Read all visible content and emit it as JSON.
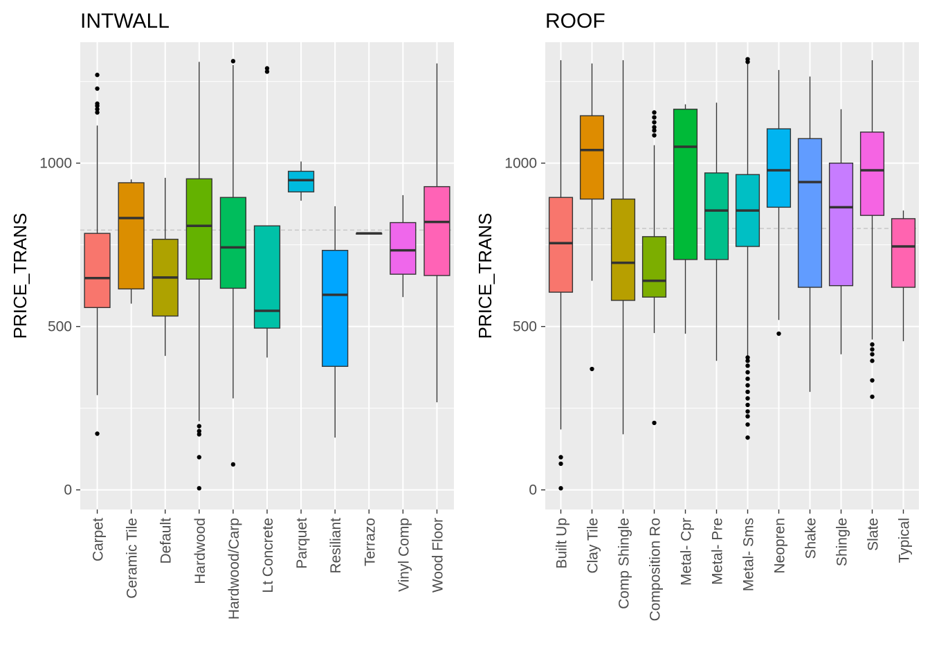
{
  "chart_data": [
    {
      "type": "boxplot",
      "title": "INTWALL",
      "xlabel": "",
      "ylabel": "PRICE_TRANS",
      "ylim": [
        -60,
        1370
      ],
      "yticks": [
        0,
        500,
        1000
      ],
      "reference_line": 795,
      "grid": true,
      "legend": "none",
      "categories": [
        "Carpet",
        "Ceramic Tile",
        "Default",
        "Hardwood",
        "Hardwood/Carp",
        "Lt Concrete",
        "Parquet",
        "Resiliant",
        "Terrazo",
        "Vinyl Comp",
        "Wood Floor"
      ],
      "colors": [
        "#F8766D",
        "#DB8E00",
        "#AEA200",
        "#64B200",
        "#00BD5C",
        "#00C1A7",
        "#00BADE",
        "#00A6FF",
        "#B385FF",
        "#EF67EB",
        "#FF63B6"
      ],
      "boxes": [
        {
          "min": 290,
          "q1": 558,
          "median": 648,
          "q3": 785,
          "max": 1115,
          "outliers": [
            172,
            1155,
            1165,
            1175,
            1182,
            1228,
            1270
          ]
        },
        {
          "min": 570,
          "q1": 615,
          "median": 832,
          "q3": 940,
          "max": 950,
          "outliers": []
        },
        {
          "min": 410,
          "q1": 532,
          "median": 650,
          "q3": 767,
          "max": 955,
          "outliers": []
        },
        {
          "min": 210,
          "q1": 645,
          "median": 808,
          "q3": 952,
          "max": 1310,
          "outliers": [
            5,
            100,
            170,
            180,
            195
          ]
        },
        {
          "min": 280,
          "q1": 617,
          "median": 742,
          "q3": 895,
          "max": 1300,
          "outliers": [
            78,
            1312
          ]
        },
        {
          "min": 405,
          "q1": 495,
          "median": 548,
          "q3": 808,
          "max": 808,
          "outliers": [
            1280,
            1290
          ]
        },
        {
          "min": 885,
          "q1": 912,
          "median": 948,
          "q3": 975,
          "max": 1005,
          "outliers": []
        },
        {
          "min": 160,
          "q1": 378,
          "median": 597,
          "q3": 733,
          "max": 868,
          "outliers": []
        },
        {
          "min": 785,
          "q1": 785,
          "median": 785,
          "q3": 785,
          "max": 785,
          "outliers": []
        },
        {
          "min": 590,
          "q1": 660,
          "median": 733,
          "q3": 818,
          "max": 902,
          "outliers": []
        },
        {
          "min": 268,
          "q1": 656,
          "median": 820,
          "q3": 928,
          "max": 1305,
          "outliers": []
        }
      ]
    },
    {
      "type": "boxplot",
      "title": "ROOF",
      "xlabel": "",
      "ylabel": "PRICE_TRANS",
      "ylim": [
        -60,
        1370
      ],
      "yticks": [
        0,
        500,
        1000
      ],
      "reference_line": 800,
      "grid": true,
      "legend": "none",
      "categories": [
        "Built Up",
        "Clay Tile",
        "Comp Shingle",
        "Composition Ro",
        "Metal- Cpr",
        "Metal- Pre",
        "Metal- Sms",
        "Neopren",
        "Shake",
        "Shingle",
        "Slate",
        "Typical"
      ],
      "colors": [
        "#F8766D",
        "#DE8C00",
        "#B79F00",
        "#7CAE00",
        "#00BA38",
        "#00C08B",
        "#00BFC4",
        "#00B4F0",
        "#619CFF",
        "#C77CFF",
        "#F564E3",
        "#FF64B0"
      ],
      "boxes": [
        {
          "min": 185,
          "q1": 605,
          "median": 755,
          "q3": 895,
          "max": 1315,
          "outliers": [
            5,
            80,
            100
          ]
        },
        {
          "min": 640,
          "q1": 890,
          "median": 1040,
          "q3": 1145,
          "max": 1305,
          "outliers": [
            370
          ]
        },
        {
          "min": 170,
          "q1": 580,
          "median": 695,
          "q3": 890,
          "max": 1315,
          "outliers": []
        },
        {
          "min": 480,
          "q1": 590,
          "median": 640,
          "q3": 775,
          "max": 1055,
          "outliers": [
            205,
            1085,
            1100,
            1110,
            1125,
            1140,
            1155
          ]
        },
        {
          "min": 478,
          "q1": 705,
          "median": 1050,
          "q3": 1165,
          "max": 1180,
          "outliers": []
        },
        {
          "min": 395,
          "q1": 705,
          "median": 855,
          "q3": 970,
          "max": 1185,
          "outliers": []
        },
        {
          "min": 410,
          "q1": 745,
          "median": 855,
          "q3": 965,
          "max": 1305,
          "outliers": [
            160,
            200,
            225,
            240,
            260,
            280,
            300,
            320,
            340,
            360,
            380,
            395,
            405,
            1310,
            1318
          ]
        },
        {
          "min": 520,
          "q1": 865,
          "median": 978,
          "q3": 1105,
          "max": 1285,
          "outliers": [
            478
          ]
        },
        {
          "min": 300,
          "q1": 620,
          "median": 942,
          "q3": 1075,
          "max": 1265,
          "outliers": []
        },
        {
          "min": 415,
          "q1": 625,
          "median": 865,
          "q3": 1000,
          "max": 1165,
          "outliers": []
        },
        {
          "min": 460,
          "q1": 840,
          "median": 978,
          "q3": 1095,
          "max": 1315,
          "outliers": [
            285,
            335,
            395,
            415,
            430,
            445
          ]
        },
        {
          "min": 455,
          "q1": 620,
          "median": 745,
          "q3": 830,
          "max": 855,
          "outliers": []
        }
      ]
    }
  ]
}
